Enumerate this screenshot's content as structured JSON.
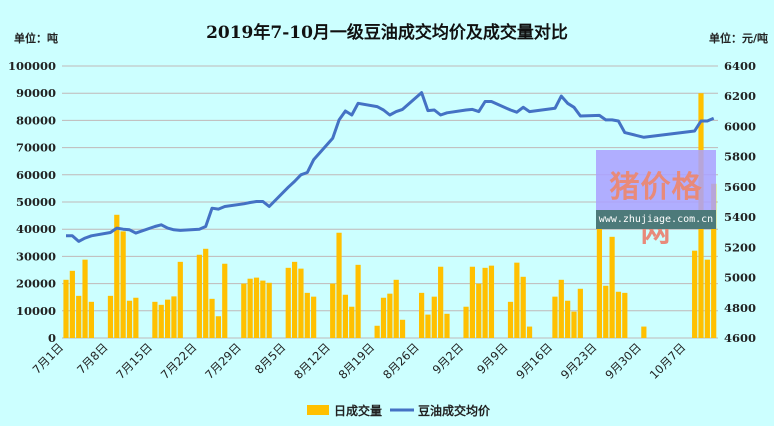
{
  "chart_data": {
    "type": "bar+line",
    "title": "2019年7-10月一级豆油成交均价及成交量对比",
    "left_unit": "单位：吨",
    "right_unit": "单位：元/吨",
    "y_left": {
      "min": 0,
      "max": 100000,
      "step": 10000
    },
    "y_right": {
      "min": 4600,
      "max": 6400,
      "step": 200
    },
    "grid": true,
    "legend_position": "bottom",
    "x_ticks": [
      "7月1日",
      "7月8日",
      "7月15日",
      "7月22日",
      "7月29日",
      "8月5日",
      "8月12日",
      "8月19日",
      "8月26日",
      "9月2日",
      "9月9日",
      "9月16日",
      "9月23日",
      "9月30日",
      "10月7日"
    ],
    "x_tick_dates": [
      "2019-07-01",
      "2019-07-08",
      "2019-07-15",
      "2019-07-22",
      "2019-07-29",
      "2019-08-05",
      "2019-08-12",
      "2019-08-19",
      "2019-08-26",
      "2019-09-02",
      "2019-09-09",
      "2019-09-16",
      "2019-09-23",
      "2019-09-30",
      "2019-10-07"
    ],
    "colors": {
      "volume": "#ffc000",
      "price": "#4472c4",
      "background": "#ccffff",
      "grid": "#c0b8b8"
    },
    "series": [
      {
        "name": "日成交量",
        "type": "bar",
        "axis": "left",
        "data": [
          [
            "2019-07-01",
            21400
          ],
          [
            "2019-07-02",
            24700
          ],
          [
            "2019-07-03",
            15500
          ],
          [
            "2019-07-04",
            28800
          ],
          [
            "2019-07-05",
            13300
          ],
          [
            "2019-07-08",
            15500
          ],
          [
            "2019-07-09",
            45300
          ],
          [
            "2019-07-10",
            39200
          ],
          [
            "2019-07-11",
            13700
          ],
          [
            "2019-07-12",
            14800
          ],
          [
            "2019-07-15",
            13300
          ],
          [
            "2019-07-16",
            12200
          ],
          [
            "2019-07-17",
            14100
          ],
          [
            "2019-07-18",
            15300
          ],
          [
            "2019-07-19",
            28000
          ],
          [
            "2019-07-22",
            30600
          ],
          [
            "2019-07-23",
            32800
          ],
          [
            "2019-07-24",
            14400
          ],
          [
            "2019-07-25",
            8000
          ],
          [
            "2019-07-26",
            27300
          ],
          [
            "2019-07-29",
            20000
          ],
          [
            "2019-07-30",
            21800
          ],
          [
            "2019-07-31",
            22200
          ],
          [
            "2019-08-01",
            21100
          ],
          [
            "2019-08-02",
            20300
          ],
          [
            "2019-08-05",
            25800
          ],
          [
            "2019-08-06",
            28000
          ],
          [
            "2019-08-07",
            25500
          ],
          [
            "2019-08-08",
            16600
          ],
          [
            "2019-08-09",
            15200
          ],
          [
            "2019-08-12",
            20000
          ],
          [
            "2019-08-13",
            38700
          ],
          [
            "2019-08-14",
            15900
          ],
          [
            "2019-08-15",
            11500
          ],
          [
            "2019-08-16",
            26900
          ],
          [
            "2019-08-19",
            4500
          ],
          [
            "2019-08-20",
            14800
          ],
          [
            "2019-08-21",
            16300
          ],
          [
            "2019-08-22",
            21400
          ],
          [
            "2019-08-23",
            6700
          ],
          [
            "2019-08-26",
            16600
          ],
          [
            "2019-08-27",
            8600
          ],
          [
            "2019-08-28",
            15200
          ],
          [
            "2019-08-29",
            26200
          ],
          [
            "2019-08-30",
            8900
          ],
          [
            "2019-09-02",
            11500
          ],
          [
            "2019-09-03",
            26200
          ],
          [
            "2019-09-04",
            20000
          ],
          [
            "2019-09-05",
            25800
          ],
          [
            "2019-09-06",
            26600
          ],
          [
            "2019-09-09",
            13300
          ],
          [
            "2019-09-10",
            27700
          ],
          [
            "2019-09-11",
            22500
          ],
          [
            "2019-09-12",
            4200
          ],
          [
            "2019-09-16",
            15200
          ],
          [
            "2019-09-17",
            21400
          ],
          [
            "2019-09-18",
            13700
          ],
          [
            "2019-09-19",
            9700
          ],
          [
            "2019-09-20",
            18100
          ],
          [
            "2019-09-23",
            44900
          ],
          [
            "2019-09-24",
            19200
          ],
          [
            "2019-09-25",
            37200
          ],
          [
            "2019-09-26",
            17000
          ],
          [
            "2019-09-27",
            16600
          ],
          [
            "2019-09-30",
            4200
          ],
          [
            "2019-10-08",
            32100
          ],
          [
            "2019-10-09",
            90000
          ],
          [
            "2019-10-10",
            28800
          ],
          [
            "2019-10-11",
            56700
          ]
        ]
      },
      {
        "name": "豆油成交均价",
        "type": "line",
        "axis": "right",
        "data": [
          [
            "2019-07-01",
            5276
          ],
          [
            "2019-07-02",
            5276
          ],
          [
            "2019-07-03",
            5239
          ],
          [
            "2019-07-04",
            5261
          ],
          [
            "2019-07-05",
            5276
          ],
          [
            "2019-07-08",
            5298
          ],
          [
            "2019-07-09",
            5327
          ],
          [
            "2019-07-10",
            5320
          ],
          [
            "2019-07-11",
            5316
          ],
          [
            "2019-07-12",
            5294
          ],
          [
            "2019-07-15",
            5338
          ],
          [
            "2019-07-16",
            5349
          ],
          [
            "2019-07-17",
            5327
          ],
          [
            "2019-07-18",
            5316
          ],
          [
            "2019-07-19",
            5312
          ],
          [
            "2019-07-22",
            5320
          ],
          [
            "2019-07-23",
            5338
          ],
          [
            "2019-07-24",
            5459
          ],
          [
            "2019-07-25",
            5453
          ],
          [
            "2019-07-26",
            5470
          ],
          [
            "2019-07-29",
            5488
          ],
          [
            "2019-07-30",
            5497
          ],
          [
            "2019-07-31",
            5503
          ],
          [
            "2019-08-01",
            5503
          ],
          [
            "2019-08-02",
            5470
          ],
          [
            "2019-08-05",
            5598
          ],
          [
            "2019-08-06",
            5636
          ],
          [
            "2019-08-07",
            5680
          ],
          [
            "2019-08-08",
            5695
          ],
          [
            "2019-08-09",
            5779
          ],
          [
            "2019-08-12",
            5922
          ],
          [
            "2019-08-13",
            6043
          ],
          [
            "2019-08-14",
            6102
          ],
          [
            "2019-08-15",
            6076
          ],
          [
            "2019-08-16",
            6153
          ],
          [
            "2019-08-19",
            6131
          ],
          [
            "2019-08-20",
            6109
          ],
          [
            "2019-08-21",
            6076
          ],
          [
            "2019-08-22",
            6098
          ],
          [
            "2019-08-23",
            6113
          ],
          [
            "2019-08-26",
            6224
          ],
          [
            "2019-08-27",
            6105
          ],
          [
            "2019-08-28",
            6109
          ],
          [
            "2019-08-29",
            6076
          ],
          [
            "2019-08-30",
            6090
          ],
          [
            "2019-09-02",
            6109
          ],
          [
            "2019-09-03",
            6113
          ],
          [
            "2019-09-04",
            6098
          ],
          [
            "2019-09-05",
            6165
          ],
          [
            "2019-09-06",
            6165
          ],
          [
            "2019-09-09",
            6109
          ],
          [
            "2019-09-10",
            6094
          ],
          [
            "2019-09-11",
            6127
          ],
          [
            "2019-09-12",
            6098
          ],
          [
            "2019-09-16",
            6120
          ],
          [
            "2019-09-17",
            6201
          ],
          [
            "2019-09-18",
            6153
          ],
          [
            "2019-09-19",
            6127
          ],
          [
            "2019-09-20",
            6069
          ],
          [
            "2019-09-23",
            6073
          ],
          [
            "2019-09-24",
            6043
          ],
          [
            "2019-09-25",
            6043
          ],
          [
            "2019-09-26",
            6036
          ],
          [
            "2019-09-27",
            5959
          ],
          [
            "2019-09-30",
            5928
          ],
          [
            "2019-10-08",
            5970
          ],
          [
            "2019-10-09",
            6036
          ],
          [
            "2019-10-10",
            6036
          ],
          [
            "2019-10-11",
            6054
          ]
        ]
      }
    ]
  },
  "watermark": {
    "text": "猪价格网",
    "url": "www.zhujiage.com.cn"
  }
}
